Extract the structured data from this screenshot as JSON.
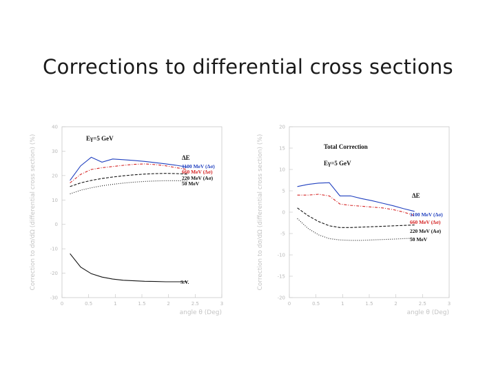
{
  "slide": {
    "title": "Corrections to differential cross sections"
  },
  "chart_data": [
    {
      "type": "line",
      "title": "",
      "energy_label": "Eγ=5 GeV",
      "xlabel": "angle θ (Deg)",
      "ylabel": "Correction to dσ/dΩ (differential cross section) (%)",
      "xlim": [
        0,
        3
      ],
      "ylim": [
        -30,
        40
      ],
      "x_ticks": [
        "0",
        "0.5",
        "1",
        "1.5",
        "2",
        "2.5",
        "3"
      ],
      "y_ticks": [
        "40",
        "30",
        "20",
        "10",
        "0",
        "-10",
        "-20",
        "-30"
      ],
      "legend_heading": "ΔE",
      "series": [
        {
          "name": "1100 MeV (Δσ)",
          "color": "#1f3fbf",
          "style": "solid",
          "x": [
            0.15,
            0.35,
            0.55,
            0.75,
            0.95,
            1.15,
            1.35,
            1.55,
            1.75,
            1.95,
            2.15,
            2.35
          ],
          "y": [
            18,
            24,
            27.5,
            25.5,
            26.8,
            26.5,
            26.2,
            25.8,
            25.3,
            24.8,
            24.2,
            23.5
          ]
        },
        {
          "name": "660 MeV (Δσ)",
          "color": "#d42020",
          "style": "dashdot",
          "x": [
            0.15,
            0.35,
            0.55,
            0.75,
            0.95,
            1.15,
            1.35,
            1.55,
            1.75,
            1.95,
            2.15,
            2.35
          ],
          "y": [
            17,
            20.5,
            22.5,
            23.2,
            23.7,
            24.2,
            24.6,
            24.8,
            24.5,
            24,
            23.2,
            22.5
          ]
        },
        {
          "name": "220 MeV (Aσ)",
          "color": "#111111",
          "style": "dashed",
          "x": [
            0.15,
            0.35,
            0.55,
            0.75,
            0.95,
            1.15,
            1.35,
            1.55,
            1.75,
            1.95,
            2.15,
            2.35
          ],
          "y": [
            15.5,
            17,
            18,
            18.8,
            19.4,
            19.9,
            20.3,
            20.6,
            20.8,
            20.9,
            20.8,
            20.6
          ]
        },
        {
          "name": "50 MeV",
          "color": "#111111",
          "style": "dotted",
          "x": [
            0.15,
            0.35,
            0.55,
            0.75,
            0.95,
            1.15,
            1.35,
            1.55,
            1.75,
            1.95,
            2.15,
            2.35
          ],
          "y": [
            12.5,
            14,
            15,
            15.8,
            16.4,
            16.9,
            17.3,
            17.6,
            17.8,
            17.9,
            17.9,
            17.8
          ]
        },
        {
          "name": "S.V.",
          "color": "#111111",
          "style": "solid",
          "x": [
            0.15,
            0.35,
            0.55,
            0.75,
            0.95,
            1.15,
            1.35,
            1.55,
            1.75,
            1.95,
            2.15,
            2.35
          ],
          "y": [
            -12,
            -17.5,
            -20.2,
            -21.6,
            -22.4,
            -22.9,
            -23.1,
            -23.3,
            -23.4,
            -23.5,
            -23.5,
            -23.5
          ]
        }
      ]
    },
    {
      "type": "line",
      "title": "Total Correction",
      "energy_label": "Eγ=5 GeV",
      "xlabel": "angle θ (Deg)",
      "ylabel": "Correction to dσ/dΩ (differential cross section) (%)",
      "xlim": [
        0,
        3
      ],
      "ylim": [
        -20,
        20
      ],
      "x_ticks": [
        "0",
        "0.5",
        "1",
        "1.5",
        "2",
        "2.5",
        "3"
      ],
      "y_ticks": [
        "20",
        "15",
        "10",
        "5",
        "0",
        "-5",
        "-10",
        "-15",
        "-20"
      ],
      "legend_heading": "ΔE",
      "series": [
        {
          "name": "1100 MeV (Δσ)",
          "color": "#1f3fbf",
          "style": "solid",
          "x": [
            0.15,
            0.35,
            0.55,
            0.75,
            0.95,
            1.15,
            1.35,
            1.55,
            1.75,
            1.95,
            2.15,
            2.35
          ],
          "y": [
            6,
            6.5,
            6.8,
            6.9,
            3.8,
            3.8,
            3.2,
            2.7,
            2.1,
            1.5,
            0.8,
            0.2
          ]
        },
        {
          "name": "660 MeV (Δσ)",
          "color": "#d42020",
          "style": "dashdot",
          "x": [
            0.15,
            0.35,
            0.55,
            0.75,
            0.95,
            1.15,
            1.35,
            1.55,
            1.75,
            1.95,
            2.15,
            2.35
          ],
          "y": [
            4,
            4,
            4.2,
            3.8,
            1.9,
            1.6,
            1.4,
            1.2,
            1,
            0.6,
            0,
            -0.8
          ]
        },
        {
          "name": "220 MeV (Aσ)",
          "color": "#111111",
          "style": "dashed",
          "x": [
            0.15,
            0.35,
            0.55,
            0.75,
            0.95,
            1.15,
            1.35,
            1.55,
            1.75,
            1.95,
            2.15,
            2.35
          ],
          "y": [
            1,
            -0.8,
            -2.2,
            -3.2,
            -3.6,
            -3.6,
            -3.5,
            -3.4,
            -3.3,
            -3.2,
            -3.1,
            -3
          ]
        },
        {
          "name": "50 MeV",
          "color": "#111111",
          "style": "dotted",
          "x": [
            0.15,
            0.35,
            0.55,
            0.75,
            0.95,
            1.15,
            1.35,
            1.55,
            1.75,
            1.95,
            2.15,
            2.35
          ],
          "y": [
            -1.5,
            -3.8,
            -5.3,
            -6.2,
            -6.5,
            -6.6,
            -6.6,
            -6.5,
            -6.4,
            -6.3,
            -6.2,
            -6.1
          ]
        }
      ]
    }
  ]
}
